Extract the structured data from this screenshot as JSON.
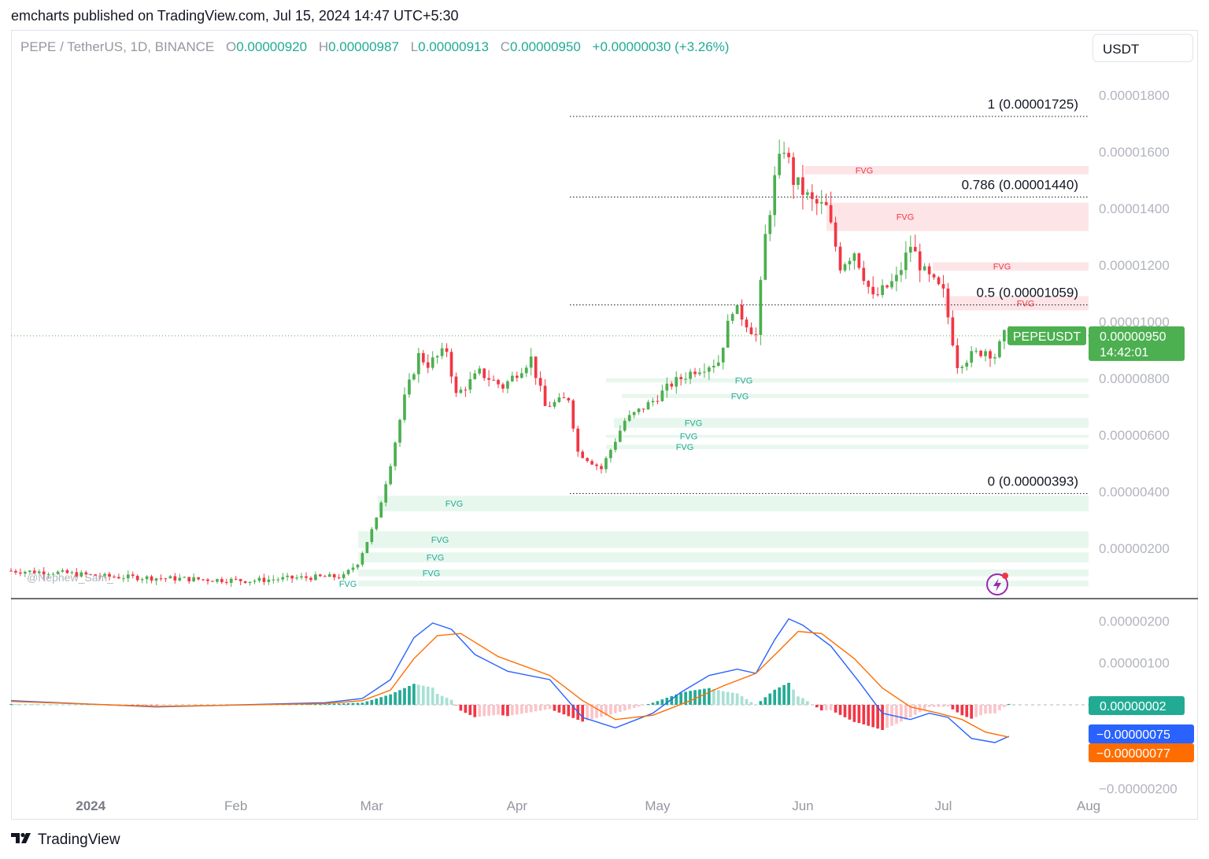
{
  "header": {
    "published": "emcharts published on TradingView.com, Jul 15, 2024 14:47 UTC+5:30"
  },
  "legend": {
    "symbol": "PEPE / TetherUS, 1D, BINANCE",
    "open_label": "O",
    "open": "0.00000920",
    "high_label": "H",
    "high": "0.00000987",
    "low_label": "L",
    "low": "0.00000913",
    "close_label": "C",
    "close": "0.00000950",
    "change": "+0.00000030 (+3.26%)"
  },
  "currency_button": "USDT",
  "watermark": "@Nephew_Sam_",
  "footer_brand": "TradingView",
  "colors": {
    "up": "#4caf50",
    "down": "#f23645",
    "grid_line": "#131722",
    "fvg_bull": "#e8f7ee",
    "fvg_bear": "#fde5e7",
    "macd": "#2962ff",
    "signal": "#ff6d00",
    "hist_up_strong": "#22ab94",
    "hist_up_weak": "#a8e0d4",
    "hist_down_strong": "#f23645",
    "hist_down_weak": "#fbc4c9"
  },
  "chart_data": [
    {
      "type": "candlestick",
      "title": "PEPE / TetherUS, 1D, BINANCE",
      "y_axis_ticks": [
        "0.00001800",
        "0.00001600",
        "0.00001400",
        "0.00001200",
        "0.00001000",
        "0.00000800",
        "0.00000600",
        "0.00000400",
        "0.00000200"
      ],
      "ylim": [
        3e-07,
        1.9e-05
      ],
      "x_axis_ticks": [
        "2024",
        "Feb",
        "Mar",
        "Apr",
        "May",
        "Jun",
        "Jul",
        "Aug"
      ],
      "x_range": [
        "2023-12-15",
        "2024-08-01"
      ],
      "last_price_label": {
        "symbol": "PEPEUSDT",
        "price": "0.00000950",
        "countdown": "14:42:01"
      },
      "fibonacci_levels": [
        {
          "label": "1 (0.00001725)",
          "value": 1.725e-05
        },
        {
          "label": "0.786 (0.00001440)",
          "value": 1.44e-05
        },
        {
          "label": "0.5 (0.00001059)",
          "value": 1.059e-05
        },
        {
          "label": "0 (0.00000393)",
          "value": 3.93e-06
        }
      ],
      "fvg_label": "FVG",
      "fvg_zones": [
        {
          "kind": "bearish",
          "low": 1.52e-05,
          "high": 1.55e-05
        },
        {
          "kind": "bearish",
          "low": 1.32e-05,
          "high": 1.42e-05
        },
        {
          "kind": "bearish",
          "low": 1.18e-05,
          "high": 1.21e-05
        },
        {
          "kind": "bearish",
          "low": 1.04e-05,
          "high": 1.09e-05
        },
        {
          "kind": "bullish",
          "low": 7.85e-06,
          "high": 8e-06
        },
        {
          "kind": "bullish",
          "low": 7.3e-06,
          "high": 7.45e-06
        },
        {
          "kind": "bullish",
          "low": 6.25e-06,
          "high": 6.6e-06
        },
        {
          "kind": "bullish",
          "low": 5.9e-06,
          "high": 6e-06
        },
        {
          "kind": "bullish",
          "low": 5.5e-06,
          "high": 5.65e-06
        },
        {
          "kind": "bullish",
          "low": 3.3e-06,
          "high": 3.85e-06
        },
        {
          "kind": "bullish",
          "low": 2e-06,
          "high": 2.6e-06
        },
        {
          "kind": "bullish",
          "low": 1.5e-06,
          "high": 1.85e-06
        },
        {
          "kind": "bullish",
          "low": 1e-06,
          "high": 1.25e-06
        },
        {
          "kind": "bullish",
          "low": 6.5e-07,
          "high": 8.5e-07
        }
      ],
      "price_path": [
        [
          "2023-12-15",
          1.2e-06
        ],
        [
          "2023-12-25",
          1.15e-06
        ],
        [
          "2024-01-05",
          1e-06
        ],
        [
          "2024-01-15",
          9.5e-07
        ],
        [
          "2024-01-25",
          9e-07
        ],
        [
          "2024-02-05",
          8.5e-07
        ],
        [
          "2024-02-15",
          9.5e-07
        ],
        [
          "2024-02-25",
          1e-06
        ],
        [
          "2024-02-28",
          1.5e-06
        ],
        [
          "2024-03-03",
          3e-06
        ],
        [
          "2024-03-06",
          5e-06
        ],
        [
          "2024-03-09",
          7.3e-06
        ],
        [
          "2024-03-12",
          8.8e-06
        ],
        [
          "2024-03-14",
          8.5e-06
        ],
        [
          "2024-03-18",
          9e-06
        ],
        [
          "2024-03-20",
          7.4e-06
        ],
        [
          "2024-03-25",
          8.2e-06
        ],
        [
          "2024-03-30",
          7.7e-06
        ],
        [
          "2024-04-05",
          8.7e-06
        ],
        [
          "2024-04-08",
          7e-06
        ],
        [
          "2024-04-13",
          7.3e-06
        ],
        [
          "2024-04-15",
          5.4e-06
        ],
        [
          "2024-04-20",
          4.8e-06
        ],
        [
          "2024-04-25",
          6.5e-06
        ],
        [
          "2024-05-01",
          7.2e-06
        ],
        [
          "2024-05-05",
          7.8e-06
        ],
        [
          "2024-05-10",
          8.3e-06
        ],
        [
          "2024-05-15",
          8.6e-06
        ],
        [
          "2024-05-18",
          1.05e-05
        ],
        [
          "2024-05-20",
          1.02e-05
        ],
        [
          "2024-05-23",
          9.5e-06
        ],
        [
          "2024-05-25",
          1.3e-05
        ],
        [
          "2024-05-27",
          1.5e-05
        ],
        [
          "2024-05-29",
          1.62e-05
        ],
        [
          "2024-05-31",
          1.5e-05
        ],
        [
          "2024-06-04",
          1.42e-05
        ],
        [
          "2024-06-07",
          1.4e-05
        ],
        [
          "2024-06-10",
          1.2e-05
        ],
        [
          "2024-06-13",
          1.25e-05
        ],
        [
          "2024-06-17",
          1.08e-05
        ],
        [
          "2024-06-22",
          1.15e-05
        ],
        [
          "2024-06-25",
          1.27e-05
        ],
        [
          "2024-06-28",
          1.17e-05
        ],
        [
          "2024-07-02",
          1.1e-05
        ],
        [
          "2024-07-05",
          8.5e-06
        ],
        [
          "2024-07-08",
          8.8e-06
        ],
        [
          "2024-07-11",
          9e-06
        ],
        [
          "2024-07-13",
          8.8e-06
        ],
        [
          "2024-07-15",
          9.5e-06
        ]
      ]
    },
    {
      "type": "line",
      "title": "MACD",
      "y_axis_ticks": [
        "0.00000200",
        "0.00000100",
        "−0.00000200"
      ],
      "ylim": [
        -2.1e-06,
        2.4e-06
      ],
      "x_range": [
        "2023-12-15",
        "2024-08-01"
      ],
      "value_labels": {
        "histogram": "0.00000002",
        "macd": "−0.00000075",
        "signal": "−0.00000077"
      },
      "series": [
        {
          "name": "MACD",
          "points": [
            [
              "2023-12-15",
              1e-07
            ],
            [
              "2024-01-15",
              -5e-08
            ],
            [
              "2024-02-20",
              5e-08
            ],
            [
              "2024-02-28",
              1.5e-07
            ],
            [
              "2024-03-05",
              6e-07
            ],
            [
              "2024-03-10",
              1.6e-06
            ],
            [
              "2024-03-14",
              1.95e-06
            ],
            [
              "2024-03-18",
              1.8e-06
            ],
            [
              "2024-03-23",
              1.2e-06
            ],
            [
              "2024-03-30",
              8e-07
            ],
            [
              "2024-04-08",
              6e-07
            ],
            [
              "2024-04-15",
              -3e-07
            ],
            [
              "2024-04-22",
              -5.5e-07
            ],
            [
              "2024-04-30",
              -2e-07
            ],
            [
              "2024-05-06",
              3e-07
            ],
            [
              "2024-05-12",
              7e-07
            ],
            [
              "2024-05-18",
              8.5e-07
            ],
            [
              "2024-05-22",
              7.5e-07
            ],
            [
              "2024-05-26",
              1.55e-06
            ],
            [
              "2024-05-29",
              2.05e-06
            ],
            [
              "2024-06-01",
              1.9e-06
            ],
            [
              "2024-06-07",
              1.4e-06
            ],
            [
              "2024-06-13",
              5.5e-07
            ],
            [
              "2024-06-18",
              -2e-07
            ],
            [
              "2024-06-24",
              -3.5e-07
            ],
            [
              "2024-06-28",
              -2e-07
            ],
            [
              "2024-07-02",
              -3e-07
            ],
            [
              "2024-07-07",
              -8e-07
            ],
            [
              "2024-07-12",
              -9e-07
            ],
            [
              "2024-07-15",
              -7.5e-07
            ]
          ]
        },
        {
          "name": "Signal",
          "points": [
            [
              "2023-12-15",
              8e-08
            ],
            [
              "2024-01-15",
              -4e-08
            ],
            [
              "2024-02-20",
              3e-08
            ],
            [
              "2024-02-28",
              1e-07
            ],
            [
              "2024-03-05",
              3.5e-07
            ],
            [
              "2024-03-10",
              1.1e-06
            ],
            [
              "2024-03-15",
              1.65e-06
            ],
            [
              "2024-03-20",
              1.7e-06
            ],
            [
              "2024-03-28",
              1.15e-06
            ],
            [
              "2024-04-08",
              7e-07
            ],
            [
              "2024-04-15",
              1e-07
            ],
            [
              "2024-04-22",
              -3.5e-07
            ],
            [
              "2024-04-30",
              -2.5e-07
            ],
            [
              "2024-05-08",
              1e-07
            ],
            [
              "2024-05-15",
              4.5e-07
            ],
            [
              "2024-05-22",
              7.5e-07
            ],
            [
              "2024-05-27",
              1.3e-06
            ],
            [
              "2024-05-31",
              1.75e-06
            ],
            [
              "2024-06-05",
              1.7e-06
            ],
            [
              "2024-06-12",
              1.1e-06
            ],
            [
              "2024-06-18",
              4e-07
            ],
            [
              "2024-06-24",
              -5e-08
            ],
            [
              "2024-06-30",
              -2e-07
            ],
            [
              "2024-07-05",
              -3.5e-07
            ],
            [
              "2024-07-10",
              -6.5e-07
            ],
            [
              "2024-07-15",
              -7.7e-07
            ]
          ]
        }
      ]
    }
  ]
}
